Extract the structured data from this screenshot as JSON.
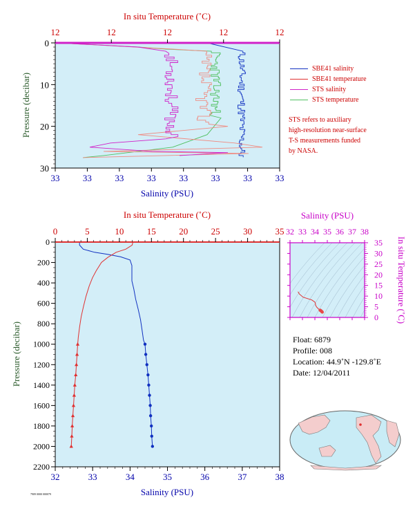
{
  "colors": {
    "panel_bg": "#d3eef8",
    "salinity_blue": "#1030c0",
    "temperature_red": "#e03030",
    "sts_magenta": "#d020c8",
    "sts_green": "#50c060",
    "sts_salmon": "#f08a80",
    "axis_red": "#cc0000",
    "axis_blue": "#0000aa",
    "axis_magenta": "#c800c8",
    "axis_green": "#2a5a2a"
  },
  "top_panel": {
    "x_top_label": "In situ Temperature (˚C)",
    "x_top_ticks": [
      "12",
      "12",
      "12",
      "12",
      "12"
    ],
    "x_bottom_label": "Salinity (PSU)",
    "x_bottom_ticks": [
      "33",
      "33",
      "33",
      "33",
      "33",
      "33",
      "33",
      "33"
    ],
    "y_label": "Pressure (decibar)",
    "y_ticks": [
      "0",
      "10",
      "20",
      "30"
    ]
  },
  "legend": {
    "items": [
      {
        "label": "SBE41 salinity",
        "color": "#1030c0"
      },
      {
        "label": "SBE41 temperature",
        "color": "#e03030"
      },
      {
        "label": "STS salinity",
        "color": "#d020c8"
      },
      {
        "label": "STS temperature",
        "color": "#50c060"
      }
    ],
    "note": "STS refers to auxiliary\nhigh-resolution near-surface\nT-S measurements funded\nby NASA."
  },
  "main_panel": {
    "x_top_label": "In situ Temperature (˚C)",
    "x_top_ticks": [
      "0",
      "5",
      "10",
      "15",
      "20",
      "25",
      "30",
      "35"
    ],
    "x_bottom_label": "Salinity (PSU)",
    "x_bottom_ticks": [
      "32",
      "33",
      "34",
      "35",
      "36",
      "37",
      "38"
    ],
    "y_label": "Pressure (decibar)",
    "y_ticks": [
      "0",
      "200",
      "400",
      "600",
      "800",
      "1000",
      "1200",
      "1400",
      "1600",
      "1800",
      "2000",
      "2200"
    ]
  },
  "ts_panel": {
    "x_label": "Salinity (PSU)",
    "x_ticks": [
      "32",
      "33",
      "34",
      "35",
      "36",
      "37",
      "38"
    ],
    "y_label": "In situ Temperature (˚C)",
    "y_ticks": [
      "0",
      "5",
      "10",
      "15",
      "20",
      "25",
      "30",
      "35"
    ]
  },
  "float_info": {
    "float": "Float:  6879",
    "profile": "Profile:  008",
    "location": "Location:  44.9˚N  -129.8˚E",
    "date": "Date:  12/04/2011"
  },
  "footer_id": "7909 0000 000079",
  "chart_data": [
    {
      "type": "line",
      "title": "",
      "xlabel": "Salinity (PSU)",
      "x2label": "In situ Temperature (˚C)",
      "ylabel": "Pressure (decibar)",
      "xlim": [
        32,
        38
      ],
      "x2lim": [
        0,
        35
      ],
      "ylim": [
        2200,
        0
      ],
      "grid": false,
      "series": [
        {
          "name": "SBE41 salinity",
          "axis": "salinity",
          "points": [
            [
              32.65,
              0
            ],
            [
              32.65,
              30
            ],
            [
              32.75,
              70
            ],
            [
              33.05,
              100
            ],
            [
              33.4,
              120
            ],
            [
              33.75,
              145
            ],
            [
              34.0,
              175
            ],
            [
              34.05,
              230
            ],
            [
              34.05,
              300
            ],
            [
              34.05,
              380
            ],
            [
              34.1,
              460
            ],
            [
              34.15,
              560
            ],
            [
              34.22,
              660
            ],
            [
              34.28,
              760
            ],
            [
              34.32,
              860
            ],
            [
              34.36,
              960
            ],
            [
              34.4,
              1000
            ],
            [
              34.42,
              1100
            ],
            [
              34.45,
              1200
            ],
            [
              34.48,
              1300
            ],
            [
              34.5,
              1400
            ],
            [
              34.52,
              1500
            ],
            [
              34.54,
              1600
            ],
            [
              34.55,
              1700
            ],
            [
              34.57,
              1800
            ],
            [
              34.58,
              1900
            ],
            [
              34.6,
              2000
            ]
          ]
        },
        {
          "name": "SBE41 temperature",
          "axis": "temperature",
          "points": [
            [
              12.1,
              0
            ],
            [
              12.0,
              30
            ],
            [
              11.0,
              70
            ],
            [
              9.5,
              100
            ],
            [
              8.2,
              150
            ],
            [
              7.2,
              200
            ],
            [
              6.4,
              280
            ],
            [
              5.8,
              350
            ],
            [
              5.3,
              430
            ],
            [
              4.8,
              530
            ],
            [
              4.4,
              630
            ],
            [
              4.05,
              730
            ],
            [
              3.8,
              830
            ],
            [
              3.6,
              930
            ],
            [
              3.5,
              1000
            ],
            [
              3.4,
              1100
            ],
            [
              3.3,
              1200
            ],
            [
              3.2,
              1300
            ],
            [
              3.05,
              1400
            ],
            [
              2.95,
              1500
            ],
            [
              2.85,
              1600
            ],
            [
              2.75,
              1700
            ],
            [
              2.65,
              1800
            ],
            [
              2.58,
              1900
            ],
            [
              2.5,
              2000
            ]
          ]
        }
      ]
    }
  ]
}
